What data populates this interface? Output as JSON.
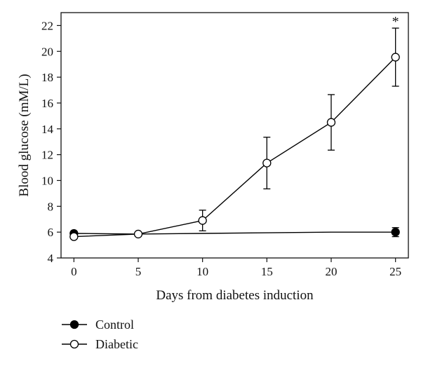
{
  "chart_data": {
    "type": "line",
    "title": "",
    "xlabel": "Days from diabetes induction",
    "ylabel": "Blood glucose (mM/L)",
    "xlim": [
      -1,
      26
    ],
    "ylim": [
      4,
      23
    ],
    "xticks": [
      0,
      5,
      10,
      15,
      20,
      25
    ],
    "yticks": [
      4,
      6,
      8,
      10,
      12,
      14,
      16,
      18,
      20,
      22
    ],
    "grid": false,
    "legend_position": "bottom-left",
    "x": [
      0,
      5,
      10,
      15,
      20,
      25
    ],
    "series": [
      {
        "name": "Control",
        "marker": "filled-circle",
        "color": "#000000",
        "values": [
          5.9,
          5.85,
          5.9,
          5.95,
          6.0,
          6.0
        ],
        "errors": [
          0.1,
          0.1,
          0.1,
          0.1,
          0.1,
          0.35
        ],
        "show_markers_at": [
          0,
          25
        ],
        "show_errors_at": [
          25
        ]
      },
      {
        "name": "Diabetic",
        "marker": "open-circle",
        "color": "#000000",
        "values": [
          5.65,
          5.85,
          6.9,
          11.35,
          14.5,
          19.55
        ],
        "errors": [
          0.1,
          0.1,
          0.8,
          2.0,
          2.15,
          2.25
        ]
      }
    ],
    "annotations": [
      {
        "text": "*",
        "x": 25,
        "y": 21.8
      }
    ]
  }
}
